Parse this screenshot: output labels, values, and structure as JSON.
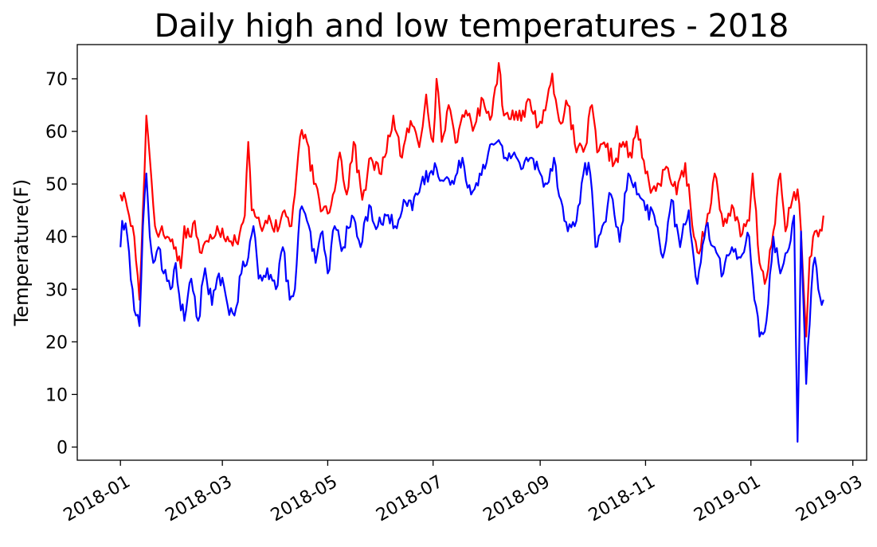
{
  "chart_data": {
    "type": "line",
    "title": "Daily high and low temperatures - 2018",
    "xlabel": "",
    "ylabel": "Temperature(F)",
    "x_start": "2018-01-01",
    "x_end": "2019-02-12",
    "xlim": [
      "2017-12-07",
      "2019-03-09"
    ],
    "ylim": [
      -2.5,
      76.5
    ],
    "x_tick_labels": [
      "2018-01",
      "2018-03",
      "2018-05",
      "2018-07",
      "2018-09",
      "2018-11",
      "2019-01",
      "2019-03"
    ],
    "x_ticks": [
      "2018-01-01",
      "2018-03-01",
      "2018-05-01",
      "2018-07-01",
      "2018-09-01",
      "2018-11-01",
      "2019-01-01",
      "2019-03-01"
    ],
    "y_ticks": [
      0,
      10,
      20,
      30,
      40,
      50,
      60,
      70
    ],
    "series": [
      {
        "color": "#ff0000",
        "keypoints": [
          [
            "2018-01-01",
            48
          ],
          [
            "2018-01-04",
            47
          ],
          [
            "2018-01-06",
            44
          ],
          [
            "2018-01-09",
            40
          ],
          [
            "2018-01-12",
            28
          ],
          [
            "2018-01-14",
            45
          ],
          [
            "2018-01-16",
            63
          ],
          [
            "2018-01-18",
            55
          ],
          [
            "2018-01-21",
            42
          ],
          [
            "2018-01-24",
            41
          ],
          [
            "2018-01-28",
            40
          ],
          [
            "2018-02-02",
            38
          ],
          [
            "2018-02-05",
            34
          ],
          [
            "2018-02-07",
            42
          ],
          [
            "2018-02-10",
            40
          ],
          [
            "2018-02-13",
            43
          ],
          [
            "2018-02-16",
            37
          ],
          [
            "2018-02-21",
            39
          ],
          [
            "2018-02-26",
            42
          ],
          [
            "2018-03-04",
            40
          ],
          [
            "2018-03-09",
            39
          ],
          [
            "2018-03-14",
            44
          ],
          [
            "2018-03-16",
            58
          ],
          [
            "2018-03-18",
            45
          ],
          [
            "2018-03-23",
            42
          ],
          [
            "2018-03-28",
            44
          ],
          [
            "2018-04-02",
            41
          ],
          [
            "2018-04-06",
            45
          ],
          [
            "2018-04-10",
            42
          ],
          [
            "2018-04-13",
            52
          ],
          [
            "2018-04-15",
            59
          ],
          [
            "2018-04-19",
            58
          ],
          [
            "2018-04-23",
            50
          ],
          [
            "2018-04-28",
            45
          ],
          [
            "2018-05-03",
            46
          ],
          [
            "2018-05-08",
            56
          ],
          [
            "2018-05-12",
            48
          ],
          [
            "2018-05-16",
            58
          ],
          [
            "2018-05-21",
            47
          ],
          [
            "2018-05-26",
            55
          ],
          [
            "2018-05-31",
            52
          ],
          [
            "2018-06-04",
            56
          ],
          [
            "2018-06-08",
            63
          ],
          [
            "2018-06-13",
            55
          ],
          [
            "2018-06-18",
            62
          ],
          [
            "2018-06-23",
            57
          ],
          [
            "2018-06-27",
            67
          ],
          [
            "2018-07-01",
            58
          ],
          [
            "2018-07-03",
            70
          ],
          [
            "2018-07-06",
            58
          ],
          [
            "2018-07-10",
            65
          ],
          [
            "2018-07-15",
            58
          ],
          [
            "2018-07-20",
            64
          ],
          [
            "2018-07-25",
            61
          ],
          [
            "2018-07-30",
            66
          ],
          [
            "2018-08-04",
            63
          ],
          [
            "2018-08-08",
            73
          ],
          [
            "2018-08-11",
            63
          ],
          [
            "2018-08-16",
            64
          ],
          [
            "2018-08-21",
            62
          ],
          [
            "2018-08-26",
            66
          ],
          [
            "2018-08-31",
            61
          ],
          [
            "2018-09-04",
            64
          ],
          [
            "2018-09-08",
            71
          ],
          [
            "2018-09-12",
            62
          ],
          [
            "2018-09-17",
            65
          ],
          [
            "2018-09-22",
            56
          ],
          [
            "2018-09-27",
            57
          ],
          [
            "2018-10-01",
            65
          ],
          [
            "2018-10-04",
            56
          ],
          [
            "2018-10-09",
            57
          ],
          [
            "2018-10-14",
            54
          ],
          [
            "2018-10-19",
            58
          ],
          [
            "2018-10-24",
            55
          ],
          [
            "2018-10-27",
            61
          ],
          [
            "2018-11-01",
            52
          ],
          [
            "2018-11-05",
            49
          ],
          [
            "2018-11-09",
            50
          ],
          [
            "2018-11-14",
            53
          ],
          [
            "2018-11-19",
            48
          ],
          [
            "2018-11-24",
            54
          ],
          [
            "2018-11-29",
            40
          ],
          [
            "2018-12-01",
            37
          ],
          [
            "2018-12-06",
            42
          ],
          [
            "2018-12-11",
            52
          ],
          [
            "2018-12-16",
            42
          ],
          [
            "2018-12-21",
            46
          ],
          [
            "2018-12-26",
            40
          ],
          [
            "2018-12-31",
            43
          ],
          [
            "2019-01-02",
            52
          ],
          [
            "2019-01-06",
            35
          ],
          [
            "2019-01-09",
            31
          ],
          [
            "2019-01-14",
            41
          ],
          [
            "2019-01-18",
            52
          ],
          [
            "2019-01-21",
            41
          ],
          [
            "2019-01-25",
            47
          ],
          [
            "2019-01-28",
            49
          ],
          [
            "2019-01-30",
            41
          ],
          [
            "2019-02-02",
            21
          ],
          [
            "2019-02-04",
            36
          ],
          [
            "2019-02-07",
            41
          ],
          [
            "2019-02-09",
            40
          ],
          [
            "2019-02-12",
            44
          ]
        ]
      },
      {
        "color": "#0000ff",
        "keypoints": [
          [
            "2018-01-01",
            38
          ],
          [
            "2018-01-02",
            43
          ],
          [
            "2018-01-05",
            40
          ],
          [
            "2018-01-08",
            30
          ],
          [
            "2018-01-10",
            25
          ],
          [
            "2018-01-12",
            23
          ],
          [
            "2018-01-14",
            42
          ],
          [
            "2018-01-16",
            52
          ],
          [
            "2018-01-18",
            40
          ],
          [
            "2018-01-20",
            35
          ],
          [
            "2018-01-23",
            38
          ],
          [
            "2018-01-26",
            33
          ],
          [
            "2018-01-30",
            30
          ],
          [
            "2018-02-02",
            35
          ],
          [
            "2018-02-04",
            29
          ],
          [
            "2018-02-07",
            24
          ],
          [
            "2018-02-11",
            32
          ],
          [
            "2018-02-15",
            24
          ],
          [
            "2018-02-19",
            34
          ],
          [
            "2018-02-23",
            27
          ],
          [
            "2018-02-27",
            33
          ],
          [
            "2018-03-04",
            27
          ],
          [
            "2018-03-08",
            25
          ],
          [
            "2018-03-12",
            33
          ],
          [
            "2018-03-16",
            36
          ],
          [
            "2018-03-19",
            42
          ],
          [
            "2018-03-22",
            32
          ],
          [
            "2018-03-27",
            34
          ],
          [
            "2018-04-01",
            30
          ],
          [
            "2018-04-05",
            38
          ],
          [
            "2018-04-09",
            28
          ],
          [
            "2018-04-12",
            30
          ],
          [
            "2018-04-15",
            45
          ],
          [
            "2018-04-19",
            43
          ],
          [
            "2018-04-24",
            35
          ],
          [
            "2018-04-28",
            41
          ],
          [
            "2018-05-01",
            33
          ],
          [
            "2018-05-05",
            42
          ],
          [
            "2018-05-10",
            38
          ],
          [
            "2018-05-15",
            44
          ],
          [
            "2018-05-20",
            38
          ],
          [
            "2018-05-25",
            46
          ],
          [
            "2018-05-30",
            42
          ],
          [
            "2018-06-04",
            44
          ],
          [
            "2018-06-09",
            42
          ],
          [
            "2018-06-14",
            47
          ],
          [
            "2018-06-19",
            45
          ],
          [
            "2018-06-24",
            50
          ],
          [
            "2018-06-29",
            52
          ],
          [
            "2018-07-03",
            53
          ],
          [
            "2018-07-08",
            51
          ],
          [
            "2018-07-13",
            50
          ],
          [
            "2018-07-18",
            55
          ],
          [
            "2018-07-23",
            48
          ],
          [
            "2018-07-28",
            52
          ],
          [
            "2018-08-02",
            56
          ],
          [
            "2018-08-07",
            58
          ],
          [
            "2018-08-12",
            55
          ],
          [
            "2018-08-17",
            56
          ],
          [
            "2018-08-22",
            53
          ],
          [
            "2018-08-27",
            55
          ],
          [
            "2018-09-01",
            52
          ],
          [
            "2018-09-05",
            50
          ],
          [
            "2018-09-09",
            55
          ],
          [
            "2018-09-13",
            47
          ],
          [
            "2018-09-17",
            41
          ],
          [
            "2018-09-22",
            43
          ],
          [
            "2018-09-27",
            54
          ],
          [
            "2018-09-30",
            52
          ],
          [
            "2018-10-03",
            38
          ],
          [
            "2018-10-07",
            42
          ],
          [
            "2018-10-12",
            48
          ],
          [
            "2018-10-17",
            39
          ],
          [
            "2018-10-22",
            52
          ],
          [
            "2018-10-27",
            48
          ],
          [
            "2018-11-01",
            45
          ],
          [
            "2018-11-06",
            44
          ],
          [
            "2018-11-11",
            36
          ],
          [
            "2018-11-16",
            47
          ],
          [
            "2018-11-21",
            38
          ],
          [
            "2018-11-26",
            45
          ],
          [
            "2018-12-01",
            31
          ],
          [
            "2018-12-06",
            42
          ],
          [
            "2018-12-11",
            38
          ],
          [
            "2018-12-16",
            33
          ],
          [
            "2018-12-21",
            38
          ],
          [
            "2018-12-26",
            36
          ],
          [
            "2018-12-31",
            40
          ],
          [
            "2019-01-03",
            28
          ],
          [
            "2019-01-06",
            21
          ],
          [
            "2019-01-10",
            24
          ],
          [
            "2019-01-14",
            40
          ],
          [
            "2019-01-18",
            33
          ],
          [
            "2019-01-22",
            37
          ],
          [
            "2019-01-26",
            44
          ],
          [
            "2019-01-28",
            1
          ],
          [
            "2019-01-30",
            41
          ],
          [
            "2019-02-02",
            12
          ],
          [
            "2019-02-05",
            30
          ],
          [
            "2019-02-07",
            36
          ],
          [
            "2019-02-09",
            30
          ],
          [
            "2019-02-11",
            27
          ],
          [
            "2019-02-12",
            28
          ]
        ]
      }
    ]
  }
}
